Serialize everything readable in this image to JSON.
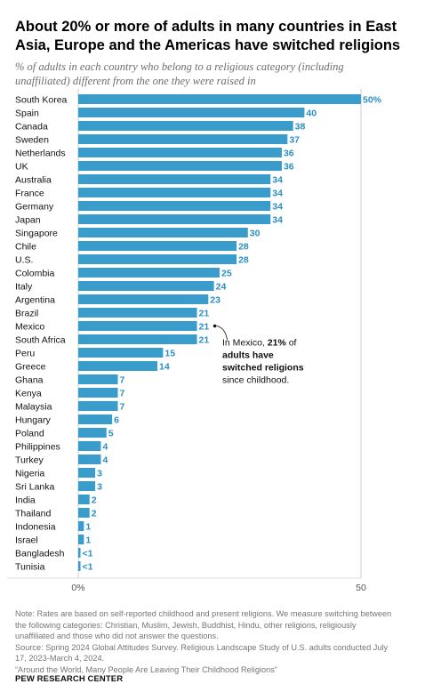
{
  "title": "About 20% or more of adults in many countries in East Asia, Europe and the Americas have switched religions",
  "subtitle": "% of adults in each country who belong to a religious category (including unaffiliated) different from the one they were raised in",
  "colors": {
    "bar": "#3a9ccb",
    "label": "#2b8fc4",
    "text": "#111111",
    "note": "#767676"
  },
  "chart_data": {
    "type": "bar",
    "orientation": "horizontal",
    "categories": [
      "South Korea",
      "Spain",
      "Canada",
      "Sweden",
      "Netherlands",
      "UK",
      "Australia",
      "France",
      "Germany",
      "Japan",
      "Singapore",
      "Chile",
      "U.S.",
      "Colombia",
      "Italy",
      "Argentina",
      "Brazil",
      "Mexico",
      "South Africa",
      "Peru",
      "Greece",
      "Ghana",
      "Kenya",
      "Malaysia",
      "Hungary",
      "Poland",
      "Philippines",
      "Turkey",
      "Nigeria",
      "Sri Lanka",
      "India",
      "Thailand",
      "Indonesia",
      "Israel",
      "Bangladesh",
      "Tunisia"
    ],
    "values": [
      50,
      40,
      38,
      37,
      36,
      36,
      34,
      34,
      34,
      34,
      30,
      28,
      28,
      25,
      24,
      23,
      21,
      21,
      21,
      15,
      14,
      7,
      7,
      7,
      6,
      5,
      4,
      4,
      3,
      3,
      2,
      2,
      1,
      1,
      0.4,
      0.4
    ],
    "value_labels": [
      "50%",
      "40",
      "38",
      "37",
      "36",
      "36",
      "34",
      "34",
      "34",
      "34",
      "30",
      "28",
      "28",
      "25",
      "24",
      "23",
      "21",
      "21",
      "21",
      "15",
      "14",
      "7",
      "7",
      "7",
      "6",
      "5",
      "4",
      "4",
      "3",
      "3",
      "2",
      "2",
      "1",
      "1",
      "<1",
      "<1"
    ],
    "xlim": [
      0,
      50
    ],
    "x_tick_labels": [
      "0%",
      "50"
    ],
    "annotation": {
      "category": "Mexico",
      "text_parts": [
        {
          "text": "In Mexico, ",
          "bold": false
        },
        {
          "text": "21%",
          "bold": true
        },
        {
          "text": " of",
          "bold": false
        },
        {
          "text": "adults have",
          "bold": true,
          "newline": true
        },
        {
          "text": "switched religions",
          "bold": true,
          "newline": true
        },
        {
          "text": "since childhood.",
          "bold": false,
          "newline": true
        }
      ]
    }
  },
  "notes": [
    "Note: Rates are based on self-reported childhood and present religions. We measure switching between the following categories: Christian, Muslim, Jewish, Buddhist, Hindu, other religions, religiously unaffiliated and those who did not answer the questions.",
    "Source: Spring 2024 Global Attitudes Survey. Religious Landscape Study of U.S. adults conducted July 17, 2023-March 4, 2024.",
    "“Around the World, Many People Are Leaving Their Childhood Religions”"
  ],
  "footer": "PEW RESEARCH CENTER"
}
